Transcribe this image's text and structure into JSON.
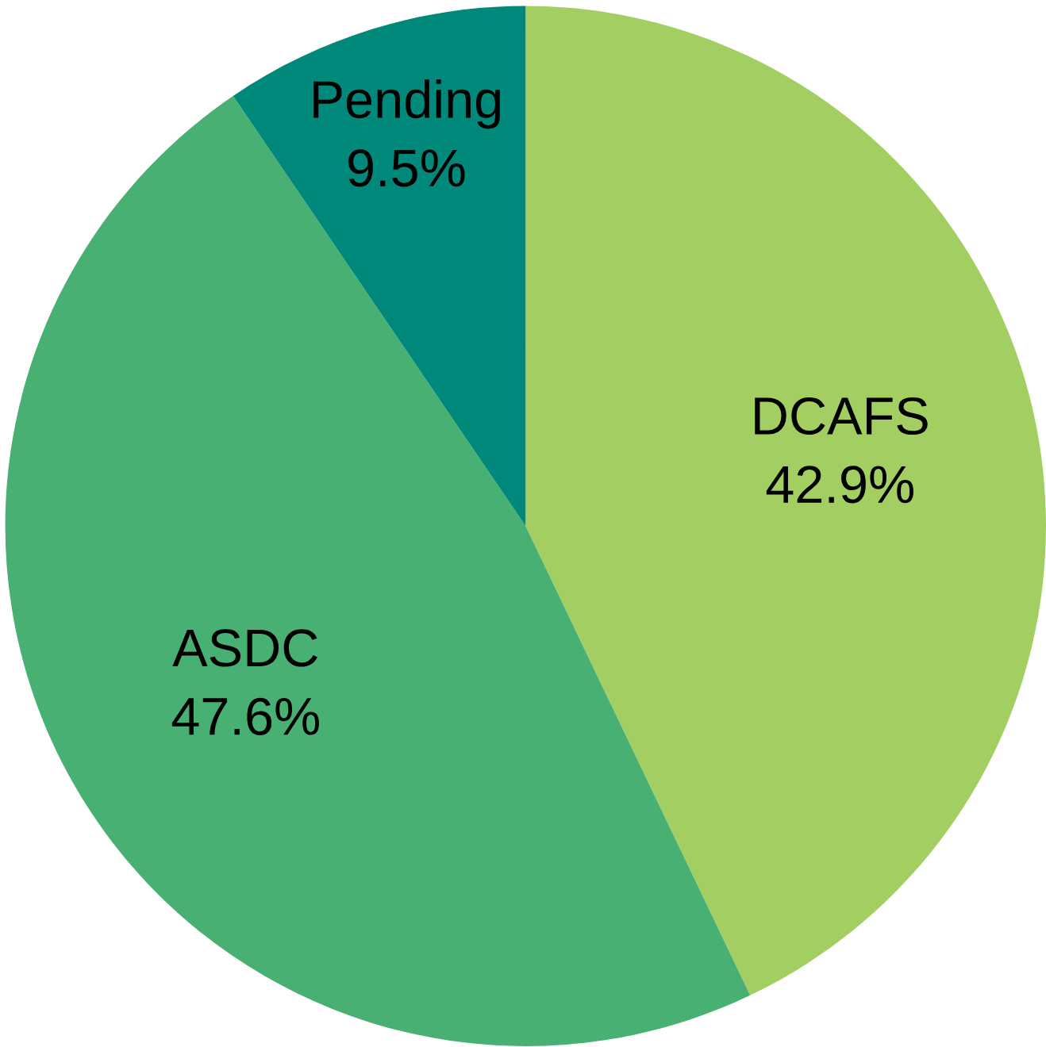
{
  "chart_data": {
    "type": "pie",
    "categories": [
      "DCAFS",
      "ASDC",
      "Pending"
    ],
    "values": [
      42.9,
      47.6,
      9.5
    ],
    "colors": [
      "#a3cf62",
      "#47b072",
      "#00897b"
    ],
    "value_labels": [
      "42.9%",
      "47.6%",
      "9.5%"
    ]
  }
}
